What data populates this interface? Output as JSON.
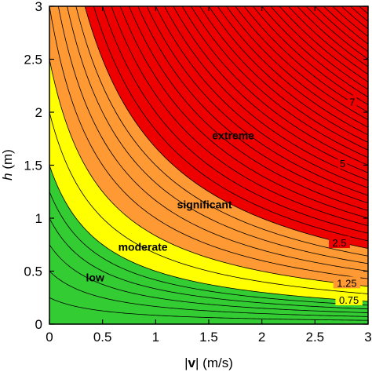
{
  "chart_data": {
    "type": "contour",
    "title": "",
    "xlabel_prefix": "|",
    "xlabel_var": "v",
    "xlabel_suffix": "| (m/s)",
    "ylabel_var": "h",
    "ylabel_suffix": " (m)",
    "xlim": [
      0,
      3
    ],
    "ylim": [
      0,
      3
    ],
    "x_ticks": [
      0,
      0.5,
      1,
      1.5,
      2,
      2.5,
      3
    ],
    "x_tick_labels": [
      "0",
      "0.5",
      "1",
      "1.5",
      "2",
      "2.5",
      "3"
    ],
    "y_ticks": [
      0,
      0.5,
      1,
      1.5,
      2,
      2.5,
      3
    ],
    "y_tick_labels": [
      "0",
      "0.5",
      "1",
      "1.5",
      "2",
      "2.5",
      "3"
    ],
    "field": "h * (v + 0.5)",
    "bands": [
      {
        "name": "low",
        "min": 0,
        "max": 0.75,
        "color": "#33cc33"
      },
      {
        "name": "moderate",
        "min": 0.75,
        "max": 1.25,
        "color": "#ffff00"
      },
      {
        "name": "significant",
        "min": 1.25,
        "max": 2.5,
        "color": "#ff9933"
      },
      {
        "name": "extreme",
        "min": 2.5,
        "max": 12,
        "color": "#ee0000"
      }
    ],
    "region_labels": [
      {
        "text": "low",
        "x": 0.43,
        "y": 0.44
      },
      {
        "text": "moderate",
        "x": 0.88,
        "y": 0.73
      },
      {
        "text": "significant",
        "x": 1.46,
        "y": 1.13
      },
      {
        "text": "extreme",
        "x": 1.73,
        "y": 1.78
      }
    ],
    "contour_labels": [
      {
        "text": "0.75",
        "x": 2.82,
        "y": 0.23
      },
      {
        "text": "1.25",
        "x": 2.8,
        "y": 0.39
      },
      {
        "text": "2.5",
        "x": 2.73,
        "y": 0.77
      },
      {
        "text": "5",
        "x": 2.76,
        "y": 1.52
      },
      {
        "text": "7",
        "x": 2.85,
        "y": 2.1
      }
    ],
    "contour_levels_low": [
      0.125,
      0.25,
      0.375,
      0.5,
      0.625,
      0.75
    ],
    "contour_levels_mod": [
      1.0,
      1.25
    ],
    "contour_levels_sig": [
      1.5,
      1.75,
      2.0,
      2.25,
      2.5
    ],
    "contour_step_high": 0.25,
    "contour_max": 11.5
  }
}
